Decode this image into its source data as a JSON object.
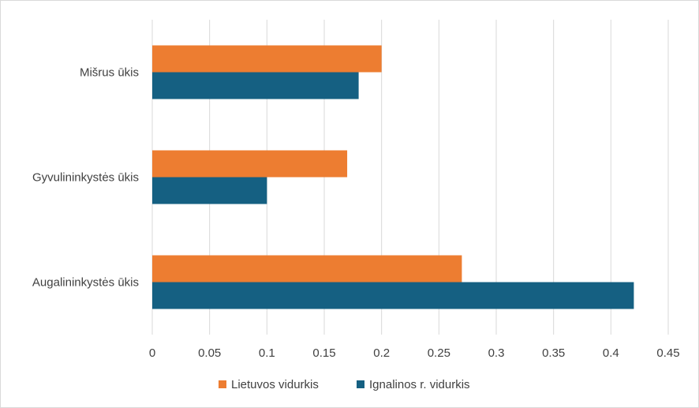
{
  "chart_data": {
    "type": "bar",
    "orientation": "horizontal",
    "categories": [
      "Augalininkystės ūkis",
      "Gyvulininkystės ūkis",
      "Mišrus ūkis"
    ],
    "series": [
      {
        "name": "Lietuvos vidurkis",
        "color": "#ED7D31",
        "values": [
          0.27,
          0.17,
          0.2
        ]
      },
      {
        "name": "Ignalinos r. vidurkis",
        "color": "#156082",
        "values": [
          0.42,
          0.1,
          0.18
        ]
      }
    ],
    "x_ticks": [
      "0",
      "0.05",
      "0.1",
      "0.15",
      "0.2",
      "0.25",
      "0.3",
      "0.35",
      "0.4",
      "0.45"
    ],
    "xlim": [
      0,
      0.45
    ],
    "grid": "vertical",
    "legend_position": "bottom",
    "title": "",
    "xlabel": "",
    "ylabel": ""
  }
}
